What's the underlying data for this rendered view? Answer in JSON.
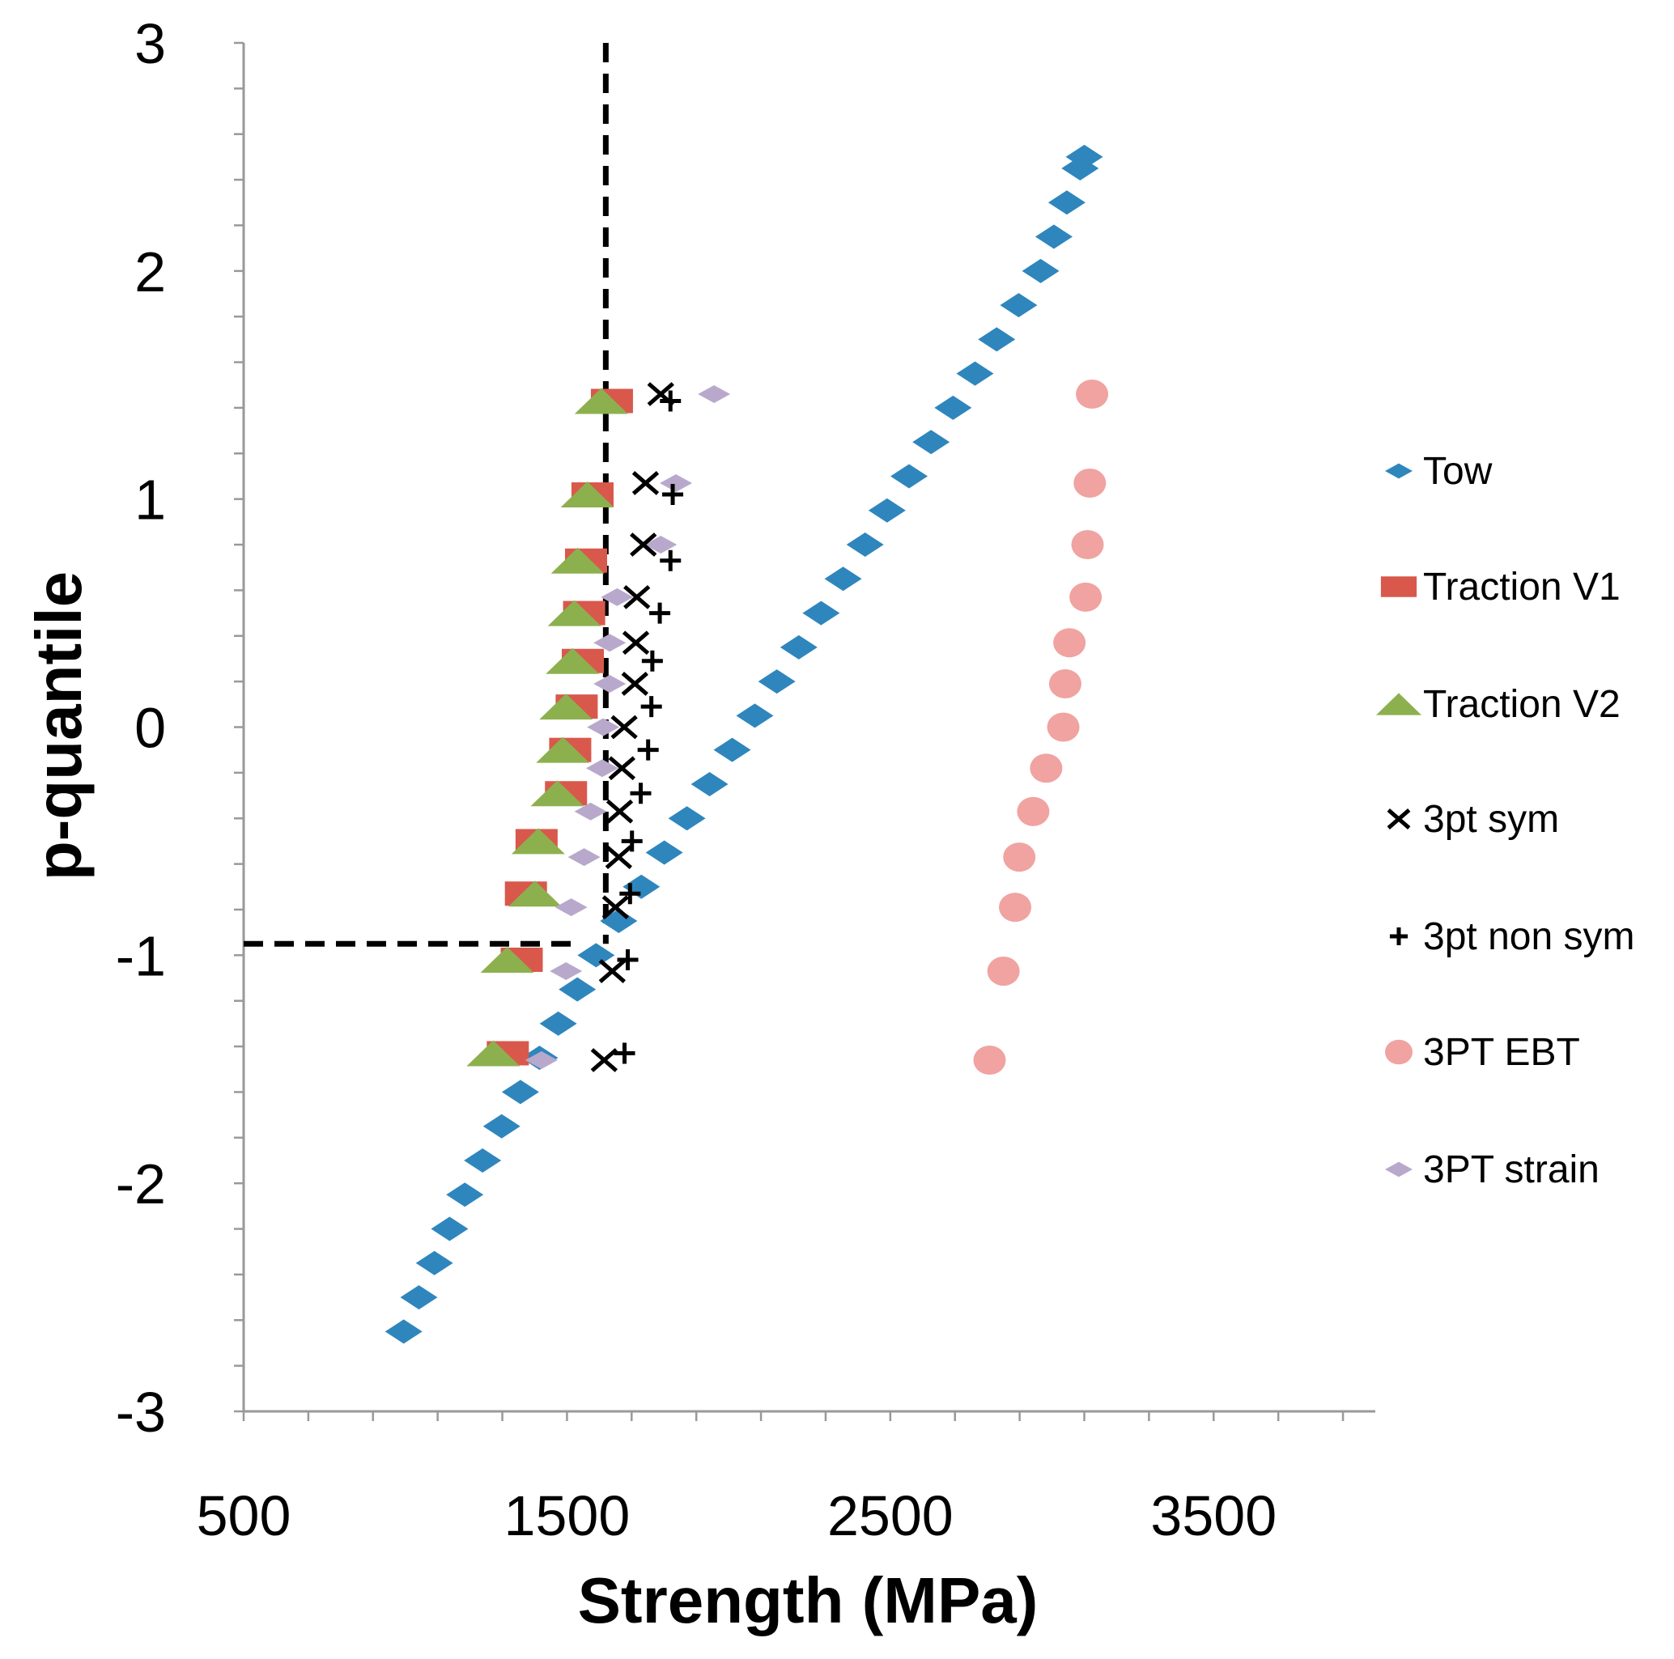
{
  "chart_data": {
    "type": "scatter",
    "title": "",
    "xlabel": "Strength (MPa)",
    "ylabel": "p-quantile",
    "xlim": [
      500,
      4000
    ],
    "ylim": [
      -3,
      3
    ],
    "x_major_ticks": [
      500,
      1500,
      2500,
      3500
    ],
    "x_tick_labels": [
      "500",
      "1500",
      "2500",
      "3500"
    ],
    "x_minor_step": 200,
    "y_major_ticks": [
      3,
      2,
      1,
      0,
      -1,
      -2,
      -3
    ],
    "y_tick_labels": [
      "3",
      "2",
      "1",
      "0",
      "-1",
      "-2",
      "-3"
    ],
    "y_minor_step": 0.2,
    "grid": false,
    "legend_position": "right",
    "series": [
      {
        "name": "Tow",
        "marker": "diamond",
        "color": "#2f86bd",
        "x": [
          995,
          1042,
          1090,
          1137,
          1184,
          1239,
          1298,
          1356,
          1415,
          1473,
          1532,
          1590,
          1660,
          1730,
          1801,
          1871,
          1941,
          2011,
          2081,
          2149,
          2217,
          2286,
          2354,
          2422,
          2490,
          2558,
          2626,
          2694,
          2762,
          2829,
          2897,
          2965,
          3006,
          3046,
          3087,
          3100
        ],
        "y": [
          -2.65,
          -2.5,
          -2.35,
          -2.2,
          -2.05,
          -1.9,
          -1.75,
          -1.6,
          -1.45,
          -1.3,
          -1.15,
          -1.0,
          -0.85,
          -0.7,
          -0.55,
          -0.4,
          -0.25,
          -0.1,
          0.05,
          0.2,
          0.35,
          0.5,
          0.65,
          0.8,
          0.95,
          1.1,
          1.25,
          1.4,
          1.55,
          1.7,
          1.85,
          2.0,
          2.15,
          2.3,
          2.45,
          2.5
        ]
      },
      {
        "name": "Traction V1",
        "marker": "square",
        "color": "#d9584c",
        "x": [
          1639,
          1579,
          1559,
          1553,
          1549,
          1530,
          1510,
          1497,
          1406,
          1373,
          1360,
          1317
        ],
        "y": [
          1.43,
          1.02,
          0.73,
          0.5,
          0.29,
          0.09,
          -0.1,
          -0.29,
          -0.5,
          -0.73,
          -1.02,
          -1.43
        ]
      },
      {
        "name": "Traction V2",
        "marker": "triangle",
        "color": "#8db04f",
        "x": [
          1606,
          1563,
          1533,
          1523,
          1517,
          1497,
          1487,
          1470,
          1411,
          1401,
          1315,
          1272
        ],
        "y": [
          1.43,
          1.02,
          0.73,
          0.5,
          0.29,
          0.09,
          -0.1,
          -0.29,
          -0.5,
          -0.73,
          -1.02,
          -1.43
        ]
      },
      {
        "name": "3pt sym",
        "marker": "x",
        "color": "#000000",
        "x": [
          1790,
          1743,
          1736,
          1716,
          1713,
          1710,
          1677,
          1670,
          1663,
          1660,
          1650,
          1640,
          1615
        ],
        "y": [
          1.46,
          1.07,
          0.8,
          0.57,
          0.37,
          0.19,
          0,
          -0.18,
          -0.37,
          -0.57,
          -0.79,
          -1.07,
          -1.46
        ]
      },
      {
        "name": "3pt non sym",
        "marker": "plus",
        "color": "#000000",
        "x": [
          1820,
          1827,
          1820,
          1787,
          1764,
          1761,
          1751,
          1728,
          1701,
          1695,
          1688,
          1678
        ],
        "y": [
          1.43,
          1.02,
          0.73,
          0.5,
          0.29,
          0.09,
          -0.1,
          -0.29,
          -0.5,
          -0.73,
          -1.02,
          -1.43
        ]
      },
      {
        "name": "3PT EBT",
        "marker": "circle",
        "color": "#f0a3a0",
        "x": [
          3124,
          3117,
          3110,
          3104,
          3054,
          3041,
          3035,
          2982,
          2942,
          2899,
          2886,
          2850,
          2807
        ],
        "y": [
          1.46,
          1.07,
          0.8,
          0.57,
          0.37,
          0.19,
          0,
          -0.18,
          -0.37,
          -0.57,
          -0.79,
          -1.07,
          -1.46
        ]
      },
      {
        "name": "3PT strain",
        "marker": "diamond-small",
        "color": "#b8a9cc",
        "x": [
          1955,
          1837,
          1790,
          1655,
          1632,
          1632,
          1612,
          1609,
          1573,
          1553,
          1513,
          1497,
          1421
        ],
        "y": [
          1.46,
          1.07,
          0.8,
          0.57,
          0.37,
          0.19,
          0,
          -0.18,
          -0.37,
          -0.57,
          -0.79,
          -1.07,
          -1.46
        ]
      }
    ],
    "annotations": [
      {
        "type": "dashed-vertical",
        "x": 1620,
        "y_from": -0.95,
        "y_to": 3
      },
      {
        "type": "dashed-horizontal",
        "y": -0.95,
        "x_from": 500,
        "x_to": 1530
      }
    ]
  }
}
